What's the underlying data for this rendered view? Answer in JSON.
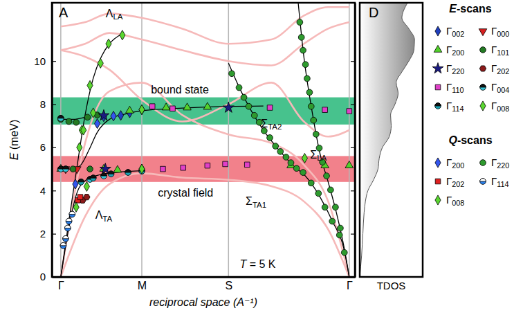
{
  "chart_data": [
    {
      "type": "scatter",
      "title": "A",
      "xlabel": "reciprocal space (A⁻¹)",
      "ylabel": "E (meV)",
      "xlim": [
        -0.11,
        3.63
      ],
      "ylim": [
        0,
        12.7
      ],
      "xticks": [
        {
          "value": 0,
          "label": "Γ"
        },
        {
          "value": 1,
          "label": "M"
        },
        {
          "value": 2.07,
          "label": "S"
        },
        {
          "value": 3.56,
          "label": "Γ"
        }
      ],
      "yticks": [
        0,
        2,
        4,
        6,
        8,
        10
      ],
      "grid": "x",
      "legend": "right",
      "bands": [
        {
          "range": [
            7.06,
            8.32
          ],
          "color": "#47c28d"
        },
        {
          "range": [
            4.4,
            5.6
          ],
          "color": "#f2818b"
        }
      ],
      "annotations": [
        {
          "text": "ΛLA",
          "x": 0.66,
          "y": 12.2
        },
        {
          "text": "ΛTA",
          "x": 0.53,
          "y": 2.84
        },
        {
          "text": "ΣTA2",
          "x": 2.6,
          "y": 7.1
        },
        {
          "text": "ΣLA",
          "x": 3.18,
          "y": 5.65
        },
        {
          "text": "ΣTA1",
          "x": 2.41,
          "y": 3.48
        },
        {
          "text": "bound state",
          "x": 1.47,
          "y": 8.65
        },
        {
          "text": "crystal field",
          "x": 1.54,
          "y": 3.87
        },
        {
          "text": "T = 5 K",
          "x": 2.43,
          "y": 0.58
        }
      ],
      "calculation": [
        {
          "color": "#f6b9b9",
          "line_style": "solid",
          "x": [
            0,
            0.3,
            0.6,
            1,
            1.5,
            2.07,
            2.6,
            3.0,
            3.3,
            3.56
          ],
          "values": [
            0,
            2.8,
            4.3,
            4.8,
            4.6,
            4.5,
            4.2,
            3.5,
            2.2,
            0
          ]
        },
        {
          "color": "#f6b9b9",
          "line_style": "solid",
          "x": [
            0,
            0.3,
            0.6,
            1,
            1.5,
            2.07,
            2.6,
            3.0,
            3.3,
            3.56
          ],
          "values": [
            0,
            6.2,
            8.6,
            9.0,
            7.5,
            6.6,
            6.2,
            5.2,
            3.5,
            0
          ]
        },
        {
          "color": "#f6b9b9",
          "line_style": "solid",
          "x": [
            0,
            0.3,
            0.6,
            1,
            1.5,
            2.07,
            2.6,
            3.0,
            3.3,
            3.56
          ],
          "values": [
            10.5,
            10.2,
            9.6,
            8.2,
            7.2,
            8.0,
            9.0,
            7.2,
            6.5,
            6.8
          ]
        },
        {
          "color": "#f6b9b9",
          "line_style": "solid",
          "x": [
            0,
            0.3,
            0.6,
            1,
            1.5,
            2.07,
            2.6,
            3.0,
            3.3,
            3.56
          ],
          "values": [
            10.5,
            10.8,
            11.3,
            11.0,
            10.5,
            10.0,
            9.8,
            10.8,
            11.5,
            11.8
          ]
        },
        {
          "color": "#f6b9b9",
          "line_style": "solid",
          "x": [
            0,
            0.3,
            0.6,
            1,
            1.5,
            2.07,
            2.6,
            3.0,
            3.3,
            3.56
          ],
          "values": [
            11.6,
            11.8,
            12.2,
            12.0,
            11.5,
            10.8,
            11.0,
            12.1,
            12.5,
            12.5
          ]
        }
      ],
      "fits": [
        {
          "color": "#000000",
          "line_style": "solid",
          "x": [
            0,
            0.1,
            0.2,
            0.3,
            0.4,
            0.5,
            0.6,
            0.75
          ],
          "values": [
            0,
            2.6,
            5.1,
            7.5,
            9.2,
            10.2,
            10.8,
            11.25
          ]
        },
        {
          "color": "#000000",
          "line_style": "solid",
          "x": [
            0,
            0.1,
            0.2,
            0.3,
            0.45,
            0.7,
            1.0
          ],
          "values": [
            0,
            2.3,
            3.9,
            4.45,
            4.7,
            4.85,
            4.92
          ]
        },
        {
          "color": "#000000",
          "line_style": "solid",
          "x": [
            0,
            0.15,
            0.25,
            0.35,
            0.45,
            0.6,
            0.8,
            1.0,
            1.5,
            2.07,
            2.5
          ],
          "values": [
            5.0,
            5.0,
            5.2,
            5.9,
            6.7,
            7.3,
            7.55,
            7.7,
            7.82,
            7.9,
            7.92
          ]
        },
        {
          "color": "#000000",
          "line_style": "solid",
          "x": [
            0,
            0.15,
            0.3
          ],
          "values": [
            7.3,
            7.3,
            7.4
          ]
        },
        {
          "color": "#000000",
          "line_style": "solid",
          "x": [
            2.07,
            2.2,
            2.35,
            2.5,
            2.7,
            2.9,
            3.0,
            3.2,
            3.35,
            3.5,
            3.56
          ],
          "values": [
            9.9,
            8.8,
            7.7,
            6.8,
            5.85,
            5.05,
            4.75,
            3.7,
            2.6,
            1.2,
            0
          ]
        },
        {
          "color": "#000000",
          "line_style": "solid",
          "x": [
            2.93,
            3.0,
            3.1,
            3.2,
            3.3,
            3.4,
            3.5,
            3.56
          ],
          "values": [
            12.7,
            10.2,
            7.7,
            5.7,
            4.4,
            3.0,
            1.3,
            0
          ]
        }
      ],
      "legend_groups": [
        {
          "title": "E-scans",
          "series": [
            {
              "name": "Γ002",
              "color": "#1f3fbf",
              "marker": "diamond",
              "x": [
                0.53,
                0.74,
                1.0,
                1.0,
                0.85
              ],
              "values": [
                7.42,
                7.48,
                7.74,
                5.0,
                7.6
              ]
            },
            {
              "name": "Γ000",
              "color": "#d62020",
              "marker": "triangle-down",
              "x": [
                0.06,
                0.2
              ],
              "values": [
                5.0,
                5.0
              ]
            },
            {
              "name": "Γ200",
              "color": "#52d12b",
              "marker": "triangle",
              "x": [
                0.0,
                0.53,
                0.7,
                1.3,
                1.56,
                1.81,
                2.84,
                3.26,
                3.56,
                0.85
              ],
              "values": [
                5.0,
                5.0,
                4.95,
                7.84,
                7.84,
                7.87,
                5.16,
                5.16,
                5.16,
                7.7
              ]
            },
            {
              "name": "Γ101",
              "color": "#237a23",
              "marker": "circle",
              "x": [
                0.0,
                0.1,
                0.19,
                0.33,
                0.45,
                0.36,
                0.15
              ],
              "values": [
                7.3,
                7.2,
                7.16,
                7.4,
                7.5,
                5.0,
                5.0
              ]
            },
            {
              "name": "Γ220",
              "color": "#1a1a80",
              "marker": "star",
              "x": [
                0.53,
                0.55,
                2.07
              ],
              "values": [
                7.48,
                5.0,
                7.84
              ]
            },
            {
              "name": "Γ202",
              "color": "#8b1a1a",
              "marker": "hexagon",
              "x": [
                0.27,
                0.32
              ],
              "values": [
                3.55,
                3.7
              ]
            },
            {
              "name": "Γ110",
              "color": "#e040c8",
              "marker": "square",
              "x": [
                1.13,
                1.38,
                1.26,
                1.51,
                1.81,
                2.03,
                2.58,
                3.26,
                3.56,
                2.3
              ],
              "values": [
                7.9,
                7.8,
                5.0,
                5.06,
                5.16,
                5.23,
                7.84,
                7.74,
                7.68,
                5.2
              ]
            },
            {
              "name": "Γ004",
              "color": "#35c4d6",
              "marker": "half-circle",
              "x": [
                0,
                0,
                0.06,
                0.36,
                0.53
              ],
              "values": [
                7.35,
                5.0,
                5.0,
                4.52,
                4.68
              ]
            },
            {
              "name": "Γ114",
              "color": "#1ba3b5",
              "marker": "half-circle",
              "x": [
                0.4,
                0.62,
                0.83,
                1.0,
                0.25
              ],
              "values": [
                4.58,
                4.77,
                4.84,
                4.9,
                4.4
              ]
            },
            {
              "name": "Γ008",
              "color": "#5ad630",
              "marker": "diamond",
              "x": [
                0.36,
                0.49,
                0.59,
                0.76,
                1.0,
                1.0,
                3.01,
                0.26
              ],
              "values": [
                8.87,
                9.9,
                10.8,
                11.2,
                5.0,
                7.75,
                5.5,
                6.8
              ]
            }
          ]
        },
        {
          "title": "Q-scans",
          "series": [
            {
              "name": "Γ200",
              "color": "#3355ee",
              "marker": "diamond",
              "x": [
                0.18,
                0.45,
                0.65
              ],
              "values": [
                4.3,
                7.1,
                7.45
              ]
            },
            {
              "name": "Γ220",
              "color": "#2e9a2e",
              "marker": "circle",
              "x": [
                2.11,
                2.2,
                2.26,
                2.32,
                2.39,
                2.45,
                2.51,
                2.58,
                2.65,
                2.71,
                2.78,
                2.84,
                2.91,
                2.99,
                3.09,
                3.18,
                3.26,
                3.35,
                3.44,
                3.5,
                2.95,
                2.97,
                2.99,
                3.02,
                3.04,
                3.07,
                3.09,
                3.12,
                3.15,
                3.19,
                3.23,
                3.28,
                3.33,
                3.39,
                3.45
              ],
              "values": [
                9.42,
                8.77,
                8.32,
                7.9,
                7.48,
                7.16,
                6.77,
                6.45,
                6.06,
                5.81,
                5.55,
                5.29,
                5.03,
                4.84,
                4.35,
                3.87,
                3.23,
                2.58,
                1.94,
                1.13,
                11.8,
                11.1,
                10.5,
                9.84,
                9.19,
                8.55,
                7.9,
                7.26,
                6.61,
                5.97,
                5.32,
                4.68,
                4.03,
                3.23,
                2.26
              ]
            },
            {
              "name": "Γ202",
              "color": "#e02020",
              "marker": "square",
              "x": [
                0.21,
                0.24
              ],
              "values": [
                3.55,
                3.7
              ]
            },
            {
              "name": "Γ114",
              "color": "#2a7fe8",
              "marker": "half-circle-open",
              "x": [
                0.03,
                0.06,
                0.085,
                0.1,
                0.14
              ],
              "values": [
                1.45,
                1.77,
                2.26,
                2.58,
                2.9
              ]
            },
            {
              "name": "Γ008",
              "color": "#5ad630",
              "marker": "diamond",
              "x": [
                0.19,
                0.32,
                0.23,
                0.28,
                0.4
              ],
              "values": [
                3.23,
                4.19,
                6.0,
                6.8,
                7.6
              ]
            }
          ]
        }
      ]
    },
    {
      "type": "area",
      "title": "D",
      "xlabel": "TDOS",
      "orientation": "horizontal",
      "tick_labels": false,
      "xlim": [
        0,
        1
      ],
      "ylim": [
        0,
        12.7
      ],
      "color": "#8a8a8a",
      "energies": [
        0,
        1,
        2,
        3,
        3.5,
        4,
        4.5,
        5,
        5.5,
        6,
        6.5,
        7,
        7.5,
        8,
        8.5,
        9,
        9.5,
        10,
        10.5,
        11,
        11.5,
        12,
        12.7
      ],
      "values": [
        0,
        0.03,
        0.05,
        0.07,
        0.09,
        0.13,
        0.22,
        0.29,
        0.31,
        0.36,
        0.47,
        0.5,
        0.49,
        0.56,
        0.61,
        0.58,
        0.67,
        0.78,
        0.86,
        0.87,
        0.78,
        0.67,
        0.76
      ]
    }
  ]
}
